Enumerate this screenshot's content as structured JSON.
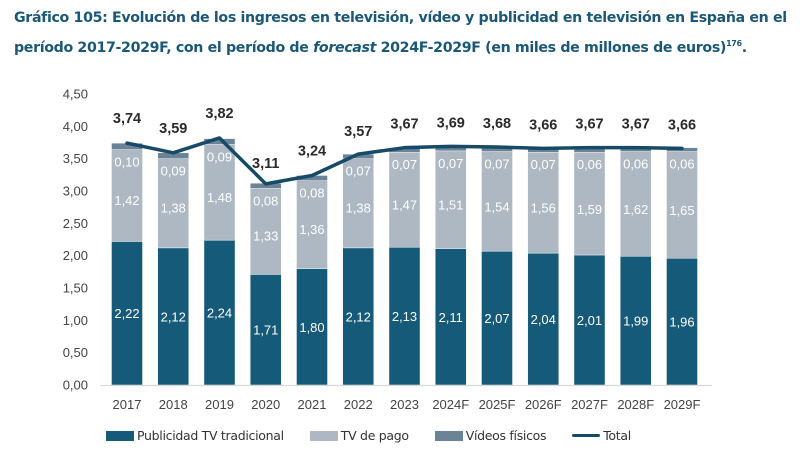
{
  "chart_data": {
    "type": "bar",
    "stacked": true,
    "title_parts": {
      "prefix": "Gráfico 105: Evolución de los ingresos en televisión, vídeo y publicidad en televisión en España en el período 2017-2029F, con el período de ",
      "italic": "forecast",
      "suffix": " 2024F-2029F (en miles de millones de euros)",
      "superscript": "176",
      "end": "."
    },
    "categories": [
      "2017",
      "2018",
      "2019",
      "2020",
      "2021",
      "2022",
      "2023",
      "2024F",
      "2025F",
      "2026F",
      "2027F",
      "2028F",
      "2029F"
    ],
    "series": [
      {
        "name": "Publicidad TV tradicional",
        "color": "#155a78",
        "values": [
          2.22,
          2.12,
          2.24,
          1.71,
          1.8,
          2.12,
          2.13,
          2.11,
          2.07,
          2.04,
          2.01,
          1.99,
          1.96
        ],
        "labels": [
          "2,22",
          "2,12",
          "2,24",
          "1,71",
          "1,80",
          "2,12",
          "2,13",
          "2,11",
          "2,07",
          "2,04",
          "2,01",
          "1,99",
          "1,96"
        ]
      },
      {
        "name": "TV de pago",
        "color": "#adb8c3",
        "values": [
          1.42,
          1.38,
          1.48,
          1.33,
          1.36,
          1.38,
          1.47,
          1.51,
          1.54,
          1.56,
          1.59,
          1.62,
          1.65
        ],
        "labels": [
          "1,42",
          "1,38",
          "1,48",
          "1,33",
          "1,36",
          "1,38",
          "1,47",
          "1,51",
          "1,54",
          "1,56",
          "1,59",
          "1,62",
          "1,65"
        ]
      },
      {
        "name": "Vídeos físicos",
        "color": "#6a8396",
        "values": [
          0.1,
          0.09,
          0.09,
          0.08,
          0.08,
          0.07,
          0.07,
          0.07,
          0.07,
          0.07,
          0.06,
          0.06,
          0.06
        ],
        "labels": [
          "0,10",
          "0,09",
          "0,09",
          "0,08",
          "0,08",
          "0,07",
          "0,07",
          "0,07",
          "0,07",
          "0,07",
          "0,06",
          "0,06",
          "0,06"
        ]
      }
    ],
    "line_series": {
      "name": "Total",
      "color": "#164a66",
      "values": [
        3.74,
        3.59,
        3.82,
        3.11,
        3.24,
        3.57,
        3.67,
        3.69,
        3.68,
        3.66,
        3.67,
        3.67,
        3.66
      ],
      "labels": [
        "3,74",
        "3,59",
        "3,82",
        "3,11",
        "3,24",
        "3,57",
        "3,67",
        "3,69",
        "3,68",
        "3,66",
        "3,67",
        "3,67",
        "3,66"
      ]
    },
    "ylim": [
      0,
      4.5
    ],
    "yticks": [
      0,
      0.5,
      1,
      1.5,
      2,
      2.5,
      3,
      3.5,
      4,
      4.5
    ],
    "ytick_labels": [
      "0,00",
      "0,50",
      "1,00",
      "1,50",
      "2,00",
      "2,50",
      "3,00",
      "3,50",
      "4,00",
      "4,50"
    ],
    "xlabel": "",
    "ylabel": "",
    "grid": false,
    "legend_position": "bottom"
  }
}
